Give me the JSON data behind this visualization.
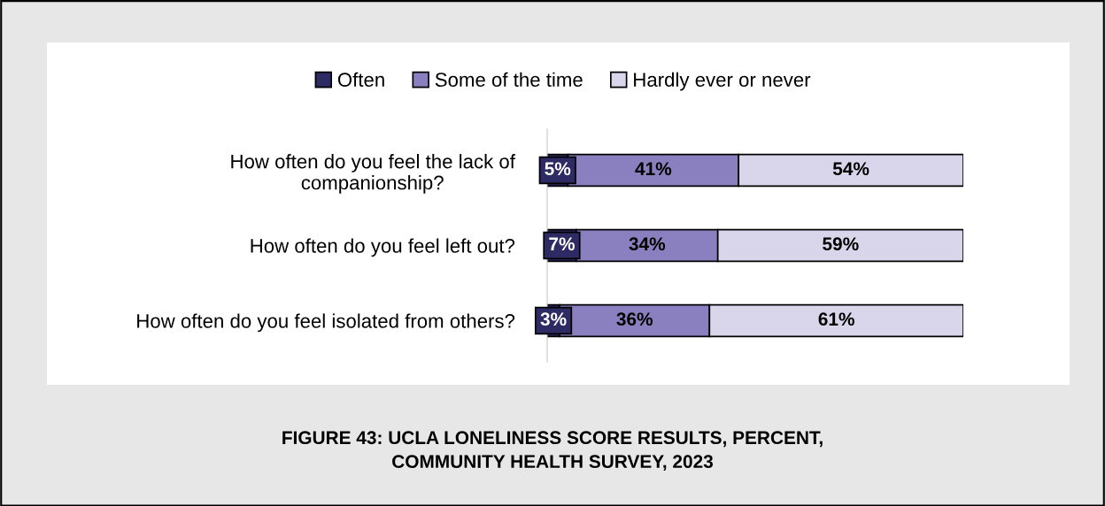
{
  "chart_data": {
    "type": "bar",
    "orientation": "horizontal",
    "stacked": true,
    "legend": "top",
    "grid": false,
    "tick_labels": "y",
    "title": "FIGURE 43: UCLA LONELINESS SCORE RESULTS, PERCENT,\nCOMMUNITY HEALTH SURVEY, 2023",
    "categories": [
      "How often do you feel the lack of\ncompanionship?",
      "How often do you feel left out?",
      "How often do you feel isolated from others?"
    ],
    "series": [
      {
        "name": "Often",
        "color": "#2e2a63",
        "values": [
          5,
          7,
          3
        ],
        "value_labels": [
          "5%",
          "7%",
          "3%"
        ]
      },
      {
        "name": "Some of the time",
        "color": "#8b80bf",
        "values": [
          41,
          34,
          36
        ],
        "value_labels": [
          "41%",
          "34%",
          "36%"
        ]
      },
      {
        "name": "Hardly ever or never",
        "color": "#d9d5ea",
        "values": [
          54,
          59,
          61
        ],
        "value_labels": [
          "54%",
          "59%",
          "61%"
        ]
      }
    ]
  }
}
